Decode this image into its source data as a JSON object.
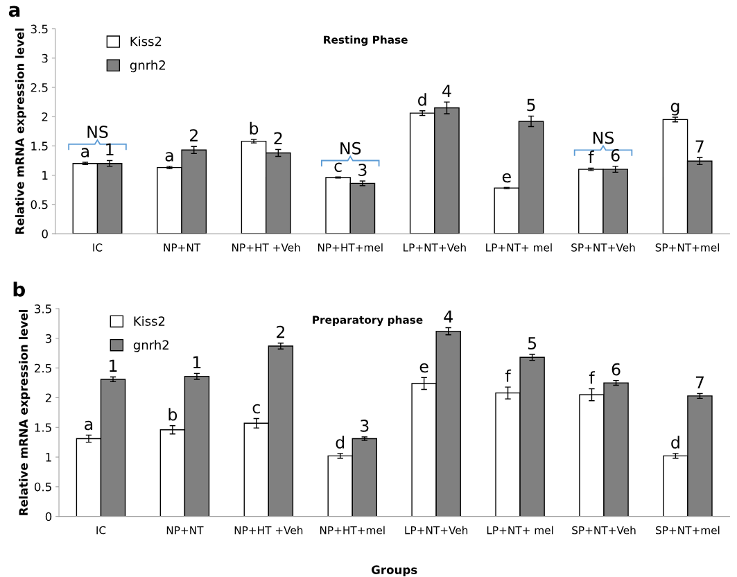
{
  "chart_data": [
    {
      "type": "bar",
      "title": "Resting Phase",
      "ylabel": "Relative mRNA expression level",
      "categories": [
        "IC",
        "NP+NT",
        "NP+HT +Veh",
        "NP+HT+mel",
        "LP+NT+Veh",
        "LP+NT+ mel",
        "SP+NT+Veh",
        "SP+NT+mel"
      ],
      "series": [
        {
          "name": "Kiss2",
          "color": "#ffffff",
          "values": [
            1.2,
            1.13,
            1.58,
            0.96,
            2.06,
            0.78,
            1.1,
            1.95
          ],
          "errors": [
            0.02,
            0.02,
            0.03,
            0.01,
            0.04,
            0.01,
            0.02,
            0.04
          ]
        },
        {
          "name": "gnrh2",
          "color": "#808080",
          "values": [
            1.2,
            1.43,
            1.38,
            0.86,
            2.15,
            1.92,
            1.1,
            1.24
          ],
          "errors": [
            0.05,
            0.06,
            0.06,
            0.04,
            0.1,
            0.09,
            0.05,
            0.06
          ]
        }
      ],
      "ylim": [
        0,
        3.5
      ],
      "yticks": [
        0,
        0.5,
        1,
        1.5,
        2,
        2.5,
        3,
        3.5
      ],
      "grid": false,
      "legend": "top left",
      "annotations": [
        "a",
        {
          "text": "NS",
          "x": "IC",
          "y": 1.2
        },
        {
          "text": "NS",
          "x": "NP+HT+mel",
          "y": 0.96
        },
        {
          "text": "NS",
          "x": "SP+NT+Veh",
          "y": 1.1
        },
        {
          "text": "a",
          "x": "IC",
          "y": 1.2
        },
        {
          "text": "a",
          "x": "NP+NT",
          "y": 1.13
        },
        {
          "text": "b",
          "x": "NP+HT +Veh",
          "y": 1.58
        },
        {
          "text": "c",
          "x": "NP+HT+mel",
          "y": 0.96
        },
        {
          "text": "d",
          "x": "LP+NT+Veh",
          "y": 2.06
        },
        {
          "text": "e",
          "x": "LP+NT+ mel",
          "y": 0.78
        },
        {
          "text": "f",
          "x": "SP+NT+Veh",
          "y": 1.1
        },
        {
          "text": "g",
          "x": "SP+NT+mel",
          "y": 1.95
        },
        {
          "text": "1",
          "x": "IC",
          "y": 1.2
        },
        {
          "text": "2",
          "x": "NP+NT",
          "y": 1.43
        },
        {
          "text": "2",
          "x": "NP+HT +Veh",
          "y": 1.38
        },
        {
          "text": "3",
          "x": "NP+HT+mel",
          "y": 0.86
        },
        {
          "text": "4",
          "x": "LP+NT+Veh",
          "y": 2.15
        },
        {
          "text": "5",
          "x": "LP+NT+ mel",
          "y": 1.92
        },
        {
          "text": "6",
          "x": "SP+NT+Veh",
          "y": 1.1
        },
        {
          "text": "7",
          "x": "SP+NT+mel",
          "y": 1.24
        }
      ]
    },
    {
      "type": "bar",
      "title": "Preparatory phase",
      "ylabel": "Relative mRNA expression level",
      "xlabel": "Groups",
      "categories": [
        "IC",
        "NP+NT",
        "NP+HT +Veh",
        "NP+HT+mel",
        "LP+NT+Veh",
        "LP+NT+ mel",
        "SP+NT+Veh",
        "SP+NT+mel"
      ],
      "series": [
        {
          "name": "Kiss2",
          "color": "#ffffff",
          "values": [
            1.31,
            1.46,
            1.57,
            1.02,
            2.24,
            2.08,
            2.05,
            1.02
          ],
          "errors": [
            0.06,
            0.07,
            0.08,
            0.04,
            0.1,
            0.1,
            0.1,
            0.04
          ]
        },
        {
          "name": "gnrh2",
          "color": "#808080",
          "values": [
            2.31,
            2.36,
            2.87,
            1.31,
            3.12,
            2.68,
            2.25,
            2.03
          ],
          "errors": [
            0.04,
            0.05,
            0.05,
            0.03,
            0.06,
            0.05,
            0.04,
            0.04
          ]
        }
      ],
      "ylim": [
        0,
        3.5
      ],
      "yticks": [
        0,
        0.5,
        1,
        1.5,
        2,
        2.5,
        3,
        3.5
      ],
      "grid": false,
      "legend": "top left",
      "annotations": [
        "b",
        {
          "text": "a",
          "x": "IC",
          "y": 1.31
        },
        {
          "text": "b",
          "x": "NP+NT",
          "y": 1.46
        },
        {
          "text": "c",
          "x": "NP+HT +Veh",
          "y": 1.57
        },
        {
          "text": "d",
          "x": "NP+HT+mel",
          "y": 1.02
        },
        {
          "text": "e",
          "x": "LP+NT+Veh",
          "y": 2.24
        },
        {
          "text": "f",
          "x": "LP+NT+ mel",
          "y": 2.08
        },
        {
          "text": "f",
          "x": "SP+NT+Veh",
          "y": 2.05
        },
        {
          "text": "d",
          "x": "SP+NT+mel",
          "y": 1.02
        },
        {
          "text": "1",
          "x": "IC",
          "y": 2.31
        },
        {
          "text": "1",
          "x": "NP+NT",
          "y": 2.36
        },
        {
          "text": "2",
          "x": "NP+HT +Veh",
          "y": 2.87
        },
        {
          "text": "3",
          "x": "NP+HT+mel",
          "y": 1.31
        },
        {
          "text": "4",
          "x": "LP+NT+Veh",
          "y": 3.12
        },
        {
          "text": "5",
          "x": "LP+NT+ mel",
          "y": 2.68
        },
        {
          "text": "6",
          "x": "SP+NT+Veh",
          "y": 2.25
        },
        {
          "text": "7",
          "x": "SP+NT+mel",
          "y": 2.03
        }
      ]
    }
  ]
}
